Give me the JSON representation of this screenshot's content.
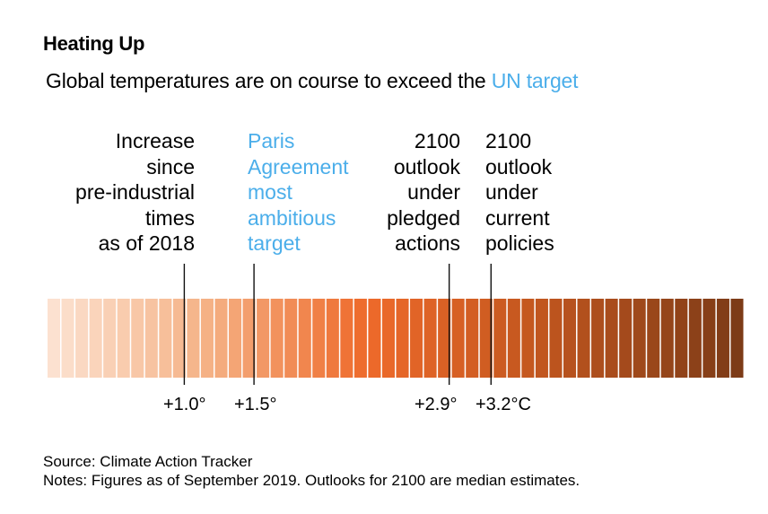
{
  "title": "Heating Up",
  "subtitle": {
    "text": "Global temperatures are on course to exceed the ",
    "accent_text": "UN target",
    "accent_color": "#4BAEEA"
  },
  "chart_data": {
    "type": "heatmap",
    "title": "Heating Up",
    "subtitle": "Global temperatures are on course to exceed the UN target",
    "xlabel": "",
    "ylabel": "",
    "unit": "°C",
    "xlim": [
      0,
      5.0
    ],
    "stripe_step": 0.1,
    "stripe_count": 50,
    "color_ramp": [
      {
        "value": 0.0,
        "color": "#FCE3D3"
      },
      {
        "value": 1.1,
        "color": "#F5B489"
      },
      {
        "value": 2.3,
        "color": "#EE6A2A"
      },
      {
        "value": 3.5,
        "color": "#C3571F"
      },
      {
        "value": 5.0,
        "color": "#7B3A17"
      }
    ],
    "markers": [
      {
        "value": 1.0,
        "tick_label": "+1.0°",
        "annotation": [
          "Increase",
          "since",
          "pre-industrial",
          "times",
          "as of 2018"
        ],
        "align": "right",
        "color": "#000000"
      },
      {
        "value": 1.5,
        "tick_label": "+1.5°",
        "annotation": [
          "Paris",
          "Agreement",
          "most",
          "ambitious",
          "target"
        ],
        "align": "left",
        "color": "#4BAEEA"
      },
      {
        "value": 2.9,
        "tick_label": "+2.9°",
        "annotation": [
          "2100",
          "outlook",
          "under",
          "pledged",
          "actions"
        ],
        "align": "right",
        "color": "#000000"
      },
      {
        "value": 3.2,
        "tick_label": "+3.2°C",
        "annotation": [
          "2100",
          "outlook",
          "under",
          "current",
          "policies"
        ],
        "align": "left",
        "color": "#000000"
      }
    ],
    "grid": false,
    "legend": "none"
  },
  "footer": {
    "source": "Source: Climate Action Tracker",
    "notes": "Notes: Figures as of September 2019. Outlooks for 2100 are median estimates."
  }
}
